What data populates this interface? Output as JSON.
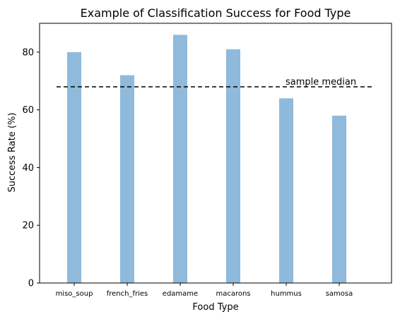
{
  "chart_data": {
    "type": "bar",
    "title": "Example of Classification Success for Food Type",
    "xlabel": "Food Type",
    "ylabel": "Success Rate (%)",
    "categories": [
      "miso_soup",
      "french_fries",
      "edamame",
      "macarons",
      "hummus",
      "samosa"
    ],
    "values": [
      80,
      72,
      86,
      81,
      64,
      58
    ],
    "ylim": [
      0,
      90
    ],
    "yticks": [
      0,
      20,
      40,
      60,
      80
    ],
    "bar_color": "#8fbadb",
    "grid": false,
    "reference_line": {
      "label": "sample median",
      "value": 68,
      "style": "dashed",
      "color": "#000000"
    }
  }
}
